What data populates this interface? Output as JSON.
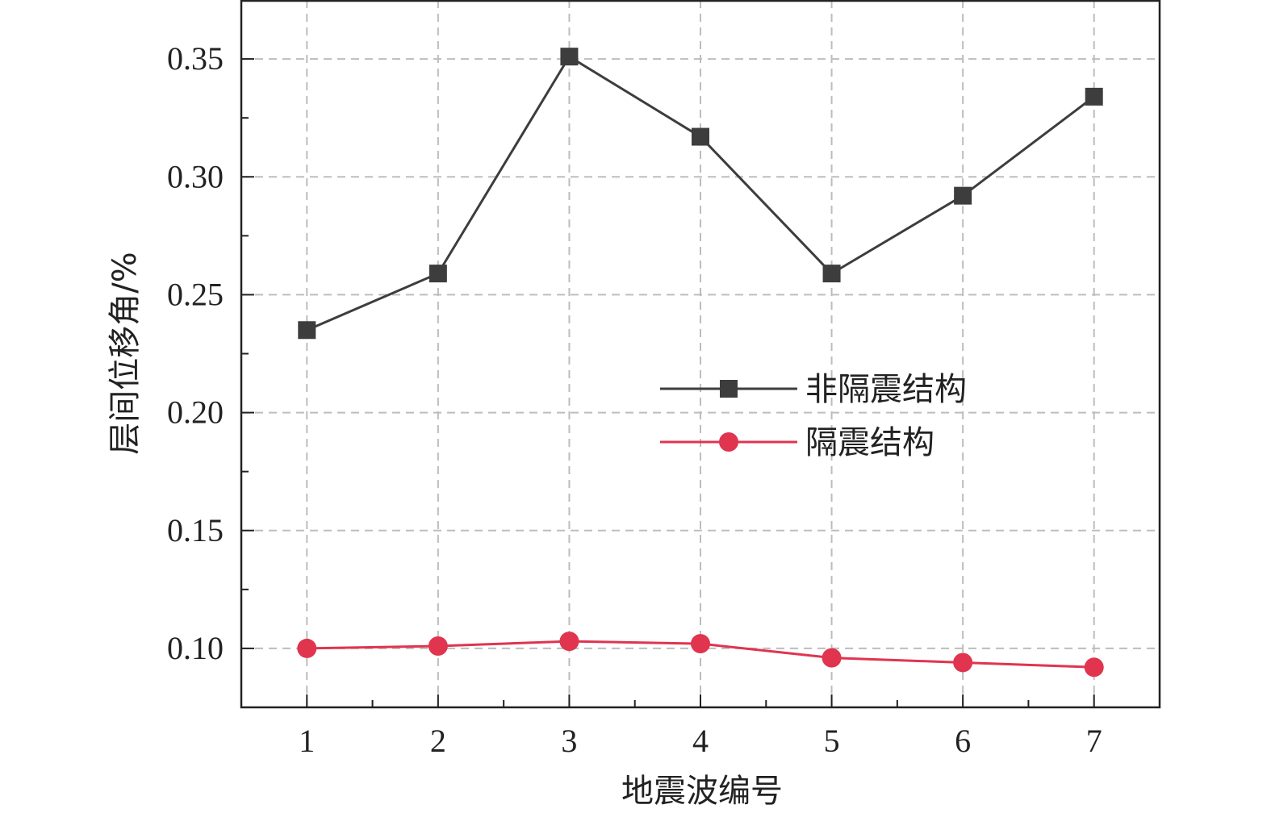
{
  "chart_data": {
    "type": "line",
    "title": "",
    "xlabel": "地震波编号",
    "ylabel": "层间位移角/%",
    "categories": [
      "1",
      "2",
      "3",
      "4",
      "5",
      "6",
      "7"
    ],
    "x": [
      1,
      2,
      3,
      4,
      5,
      6,
      7
    ],
    "xlim": [
      0.5,
      7.5
    ],
    "ylim": [
      0.075,
      0.375
    ],
    "yticks": [
      0.1,
      0.15,
      0.2,
      0.25,
      0.3,
      0.35
    ],
    "ytick_labels": [
      "0.10",
      "0.15",
      "0.20",
      "0.25",
      "0.30",
      "0.35"
    ],
    "grid": true,
    "legend_position": "center-right",
    "series": [
      {
        "name": "非隔震结构",
        "marker": "square",
        "color": "#3d3d3d",
        "values": [
          0.235,
          0.259,
          0.351,
          0.317,
          0.259,
          0.292,
          0.334
        ]
      },
      {
        "name": "隔震结构",
        "marker": "circle",
        "color": "#e0344f",
        "values": [
          0.1,
          0.101,
          0.103,
          0.102,
          0.096,
          0.094,
          0.092
        ]
      }
    ]
  }
}
